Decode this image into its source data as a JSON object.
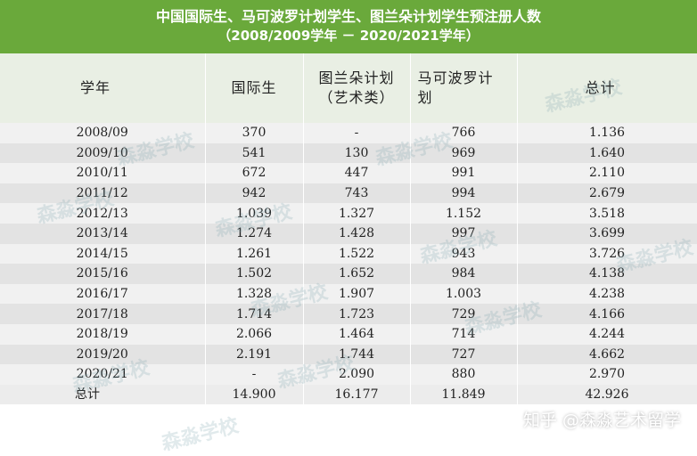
{
  "title": {
    "line1": "中国国际生、马可波罗计划学生、图兰朵计划学生预注册人数",
    "line2": "（2008/2009学年 － 2020/2021学年）"
  },
  "headers": {
    "year": "学年",
    "intl": "国际生",
    "turandot_1": "图兰朵计划",
    "turandot_2": "（艺术类）",
    "marco_1": "马可波罗计",
    "marco_2": "划",
    "total": "总计"
  },
  "rows": [
    {
      "year": "2008/09",
      "intl": "370",
      "turandot": "-",
      "marco": "766",
      "total": "1.136"
    },
    {
      "year": "2009/10",
      "intl": "541",
      "turandot": "130",
      "marco": "969",
      "total": "1.640"
    },
    {
      "year": "2010/11",
      "intl": "672",
      "turandot": "447",
      "marco": "991",
      "total": "2.110"
    },
    {
      "year": "2011/12",
      "intl": "942",
      "turandot": "743",
      "marco": "994",
      "total": "2.679"
    },
    {
      "year": "2012/13",
      "intl": "1.039",
      "turandot": "1.327",
      "marco": "1.152",
      "total": "3.518"
    },
    {
      "year": "2013/14",
      "intl": "1.274",
      "turandot": "1.428",
      "marco": "997",
      "total": "3.699"
    },
    {
      "year": "2014/15",
      "intl": "1.261",
      "turandot": "1.522",
      "marco": "943",
      "total": "3.726"
    },
    {
      "year": "2015/16",
      "intl": "1.502",
      "turandot": "1.652",
      "marco": "984",
      "total": "4.138"
    },
    {
      "year": "2016/17",
      "intl": "1.328",
      "turandot": "1.907",
      "marco": "1.003",
      "total": "4.238"
    },
    {
      "year": "2017/18",
      "intl": "1.714",
      "turandot": "1.723",
      "marco": "729",
      "total": "4.166"
    },
    {
      "year": "2018/19",
      "intl": "2.066",
      "turandot": "1.464",
      "marco": "714",
      "total": "4.244"
    },
    {
      "year": "2019/20",
      "intl": "2.191",
      "turandot": "1.744",
      "marco": "727",
      "total": "4.662"
    },
    {
      "year": "2020/21",
      "intl": "-",
      "turandot": "2.090",
      "marco": "880",
      "total": "2.970"
    }
  ],
  "total_row": {
    "label": "总计",
    "intl": "14.900",
    "turandot": "16.177",
    "marco": "11.849",
    "total": "42.926"
  },
  "watermark": {
    "text": "森淼学校"
  },
  "credit": "知乎 @森淼艺术留学",
  "colors": {
    "title_bg": "#6aa93b",
    "header_bg": "#e9efe4"
  }
}
